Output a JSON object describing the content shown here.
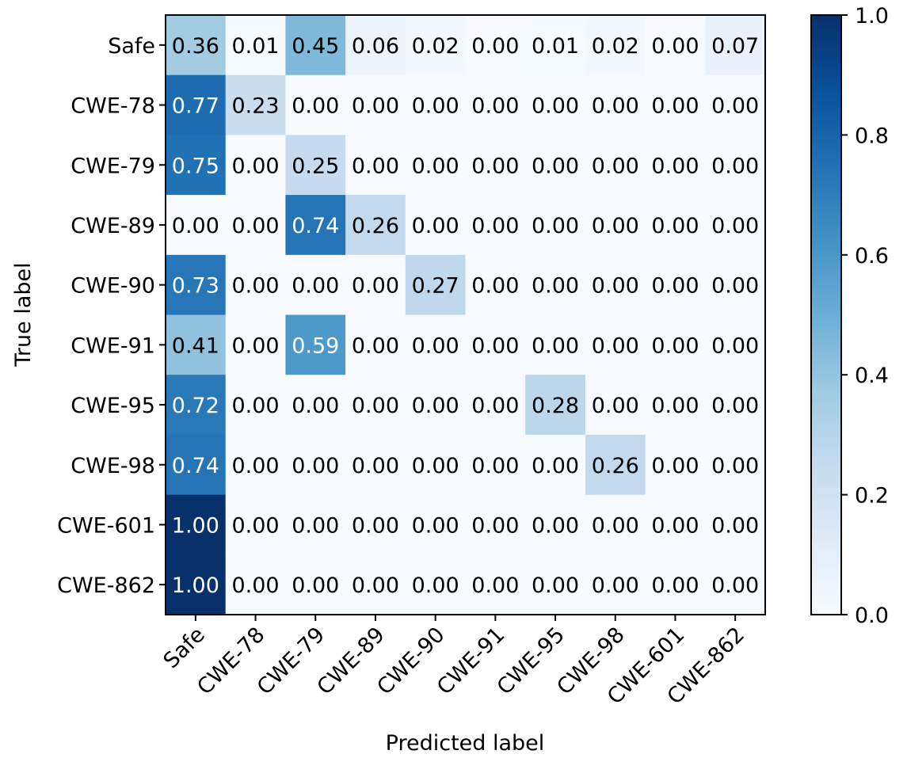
{
  "chart_data": {
    "type": "heatmap",
    "title": "",
    "xlabel": "Predicted label",
    "ylabel": "True label",
    "x_categories": [
      "Safe",
      "CWE-78",
      "CWE-79",
      "CWE-89",
      "CWE-90",
      "CWE-91",
      "CWE-95",
      "CWE-98",
      "CWE-601",
      "CWE-862"
    ],
    "y_categories": [
      "Safe",
      "CWE-78",
      "CWE-79",
      "CWE-89",
      "CWE-90",
      "CWE-91",
      "CWE-95",
      "CWE-98",
      "CWE-601",
      "CWE-862"
    ],
    "values": [
      [
        0.36,
        0.01,
        0.45,
        0.06,
        0.02,
        0.0,
        0.01,
        0.02,
        0.0,
        0.07
      ],
      [
        0.77,
        0.23,
        0.0,
        0.0,
        0.0,
        0.0,
        0.0,
        0.0,
        0.0,
        0.0
      ],
      [
        0.75,
        0.0,
        0.25,
        0.0,
        0.0,
        0.0,
        0.0,
        0.0,
        0.0,
        0.0
      ],
      [
        0.0,
        0.0,
        0.74,
        0.26,
        0.0,
        0.0,
        0.0,
        0.0,
        0.0,
        0.0
      ],
      [
        0.73,
        0.0,
        0.0,
        0.0,
        0.27,
        0.0,
        0.0,
        0.0,
        0.0,
        0.0
      ],
      [
        0.41,
        0.0,
        0.59,
        0.0,
        0.0,
        0.0,
        0.0,
        0.0,
        0.0,
        0.0
      ],
      [
        0.72,
        0.0,
        0.0,
        0.0,
        0.0,
        0.0,
        0.28,
        0.0,
        0.0,
        0.0
      ],
      [
        0.74,
        0.0,
        0.0,
        0.0,
        0.0,
        0.0,
        0.0,
        0.26,
        0.0,
        0.0
      ],
      [
        1.0,
        0.0,
        0.0,
        0.0,
        0.0,
        0.0,
        0.0,
        0.0,
        0.0,
        0.0
      ],
      [
        1.0,
        0.0,
        0.0,
        0.0,
        0.0,
        0.0,
        0.0,
        0.0,
        0.0,
        0.0
      ]
    ],
    "colormap": "Blues",
    "colorbar": {
      "range": [
        0.0,
        1.0
      ],
      "ticks": [
        "0.0",
        "0.2",
        "0.4",
        "0.6",
        "0.8",
        "1.0"
      ]
    },
    "label_color_dark": "#000000",
    "label_color_light": "#ffffff"
  }
}
